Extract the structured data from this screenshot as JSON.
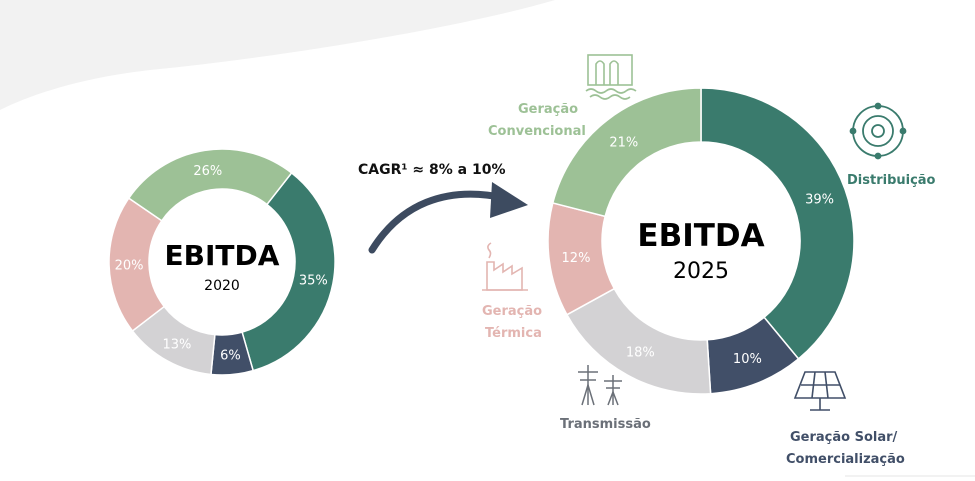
{
  "colors": {
    "distribuicao": "#3a7b6d",
    "solar": "#414f68",
    "transmissao": "#d3d2d4",
    "termica": "#e3b5b1",
    "convencional": "#9dc196",
    "arrow": "#3d4b60",
    "background_wave": "#f2f2f2"
  },
  "cagr_label": "CAGR¹ ≈ 8% a 10%",
  "legend": {
    "convencional": [
      "Geração",
      "Convencional"
    ],
    "distribuicao": [
      "Distribuição"
    ],
    "termica": [
      "Geração",
      "Térmica"
    ],
    "transmissao": [
      "Transmissão"
    ],
    "solar": [
      "Geração Solar/",
      "Comercialização"
    ]
  },
  "icons": {
    "convencional": "hydro-dam-icon",
    "distribuicao": "distribution-ring-icon",
    "termica": "thermal-plant-icon",
    "transmissao": "transmission-tower-icon",
    "solar": "solar-panel-icon"
  },
  "chart_data": [
    {
      "type": "pie",
      "title": "EBITDA",
      "subtitle": "2020",
      "categories": [
        "Distribuição",
        "Geração Solar/Comercialização",
        "Transmissão",
        "Geração Térmica",
        "Geração Convencional"
      ],
      "values": [
        35,
        6,
        13,
        20,
        26
      ],
      "labels": [
        "35%",
        "6%",
        "13%",
        "20%",
        "26%"
      ]
    },
    {
      "type": "pie",
      "title": "EBITDA",
      "subtitle": "2025",
      "categories": [
        "Distribuição",
        "Geração Solar/Comercialização",
        "Transmissão",
        "Geração Térmica",
        "Geração Convencional"
      ],
      "values": [
        39,
        10,
        18,
        12,
        21
      ],
      "labels": [
        "39%",
        "10%",
        "18%",
        "12%",
        "21%"
      ]
    }
  ]
}
